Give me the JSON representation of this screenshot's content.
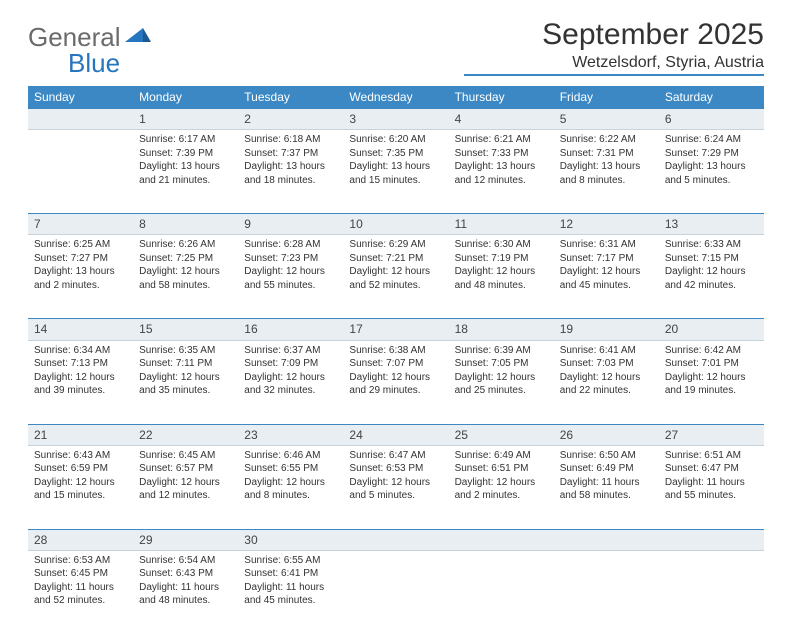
{
  "logo": {
    "part1": "General",
    "part2": "Blue"
  },
  "title": "September 2025",
  "location": "Wetzelsdorf, Styria, Austria",
  "colors": {
    "header_bg": "#3b88c4",
    "header_text": "#ffffff",
    "daynum_bg": "#e9eef2",
    "daynum_border_top": "#3b88c4",
    "body_text": "#333333",
    "logo_gray": "#6b6b6b",
    "logo_blue": "#2676bf"
  },
  "weekdays": [
    "Sunday",
    "Monday",
    "Tuesday",
    "Wednesday",
    "Thursday",
    "Friday",
    "Saturday"
  ],
  "weeks": [
    {
      "nums": [
        "",
        "1",
        "2",
        "3",
        "4",
        "5",
        "6"
      ],
      "cells": [
        null,
        {
          "sunrise": "Sunrise: 6:17 AM",
          "sunset": "Sunset: 7:39 PM",
          "d1": "Daylight: 13 hours",
          "d2": "and 21 minutes."
        },
        {
          "sunrise": "Sunrise: 6:18 AM",
          "sunset": "Sunset: 7:37 PM",
          "d1": "Daylight: 13 hours",
          "d2": "and 18 minutes."
        },
        {
          "sunrise": "Sunrise: 6:20 AM",
          "sunset": "Sunset: 7:35 PM",
          "d1": "Daylight: 13 hours",
          "d2": "and 15 minutes."
        },
        {
          "sunrise": "Sunrise: 6:21 AM",
          "sunset": "Sunset: 7:33 PM",
          "d1": "Daylight: 13 hours",
          "d2": "and 12 minutes."
        },
        {
          "sunrise": "Sunrise: 6:22 AM",
          "sunset": "Sunset: 7:31 PM",
          "d1": "Daylight: 13 hours",
          "d2": "and 8 minutes."
        },
        {
          "sunrise": "Sunrise: 6:24 AM",
          "sunset": "Sunset: 7:29 PM",
          "d1": "Daylight: 13 hours",
          "d2": "and 5 minutes."
        }
      ]
    },
    {
      "nums": [
        "7",
        "8",
        "9",
        "10",
        "11",
        "12",
        "13"
      ],
      "cells": [
        {
          "sunrise": "Sunrise: 6:25 AM",
          "sunset": "Sunset: 7:27 PM",
          "d1": "Daylight: 13 hours",
          "d2": "and 2 minutes."
        },
        {
          "sunrise": "Sunrise: 6:26 AM",
          "sunset": "Sunset: 7:25 PM",
          "d1": "Daylight: 12 hours",
          "d2": "and 58 minutes."
        },
        {
          "sunrise": "Sunrise: 6:28 AM",
          "sunset": "Sunset: 7:23 PM",
          "d1": "Daylight: 12 hours",
          "d2": "and 55 minutes."
        },
        {
          "sunrise": "Sunrise: 6:29 AM",
          "sunset": "Sunset: 7:21 PM",
          "d1": "Daylight: 12 hours",
          "d2": "and 52 minutes."
        },
        {
          "sunrise": "Sunrise: 6:30 AM",
          "sunset": "Sunset: 7:19 PM",
          "d1": "Daylight: 12 hours",
          "d2": "and 48 minutes."
        },
        {
          "sunrise": "Sunrise: 6:31 AM",
          "sunset": "Sunset: 7:17 PM",
          "d1": "Daylight: 12 hours",
          "d2": "and 45 minutes."
        },
        {
          "sunrise": "Sunrise: 6:33 AM",
          "sunset": "Sunset: 7:15 PM",
          "d1": "Daylight: 12 hours",
          "d2": "and 42 minutes."
        }
      ]
    },
    {
      "nums": [
        "14",
        "15",
        "16",
        "17",
        "18",
        "19",
        "20"
      ],
      "cells": [
        {
          "sunrise": "Sunrise: 6:34 AM",
          "sunset": "Sunset: 7:13 PM",
          "d1": "Daylight: 12 hours",
          "d2": "and 39 minutes."
        },
        {
          "sunrise": "Sunrise: 6:35 AM",
          "sunset": "Sunset: 7:11 PM",
          "d1": "Daylight: 12 hours",
          "d2": "and 35 minutes."
        },
        {
          "sunrise": "Sunrise: 6:37 AM",
          "sunset": "Sunset: 7:09 PM",
          "d1": "Daylight: 12 hours",
          "d2": "and 32 minutes."
        },
        {
          "sunrise": "Sunrise: 6:38 AM",
          "sunset": "Sunset: 7:07 PM",
          "d1": "Daylight: 12 hours",
          "d2": "and 29 minutes."
        },
        {
          "sunrise": "Sunrise: 6:39 AM",
          "sunset": "Sunset: 7:05 PM",
          "d1": "Daylight: 12 hours",
          "d2": "and 25 minutes."
        },
        {
          "sunrise": "Sunrise: 6:41 AM",
          "sunset": "Sunset: 7:03 PM",
          "d1": "Daylight: 12 hours",
          "d2": "and 22 minutes."
        },
        {
          "sunrise": "Sunrise: 6:42 AM",
          "sunset": "Sunset: 7:01 PM",
          "d1": "Daylight: 12 hours",
          "d2": "and 19 minutes."
        }
      ]
    },
    {
      "nums": [
        "21",
        "22",
        "23",
        "24",
        "25",
        "26",
        "27"
      ],
      "cells": [
        {
          "sunrise": "Sunrise: 6:43 AM",
          "sunset": "Sunset: 6:59 PM",
          "d1": "Daylight: 12 hours",
          "d2": "and 15 minutes."
        },
        {
          "sunrise": "Sunrise: 6:45 AM",
          "sunset": "Sunset: 6:57 PM",
          "d1": "Daylight: 12 hours",
          "d2": "and 12 minutes."
        },
        {
          "sunrise": "Sunrise: 6:46 AM",
          "sunset": "Sunset: 6:55 PM",
          "d1": "Daylight: 12 hours",
          "d2": "and 8 minutes."
        },
        {
          "sunrise": "Sunrise: 6:47 AM",
          "sunset": "Sunset: 6:53 PM",
          "d1": "Daylight: 12 hours",
          "d2": "and 5 minutes."
        },
        {
          "sunrise": "Sunrise: 6:49 AM",
          "sunset": "Sunset: 6:51 PM",
          "d1": "Daylight: 12 hours",
          "d2": "and 2 minutes."
        },
        {
          "sunrise": "Sunrise: 6:50 AM",
          "sunset": "Sunset: 6:49 PM",
          "d1": "Daylight: 11 hours",
          "d2": "and 58 minutes."
        },
        {
          "sunrise": "Sunrise: 6:51 AM",
          "sunset": "Sunset: 6:47 PM",
          "d1": "Daylight: 11 hours",
          "d2": "and 55 minutes."
        }
      ]
    },
    {
      "nums": [
        "28",
        "29",
        "30",
        "",
        "",
        "",
        ""
      ],
      "cells": [
        {
          "sunrise": "Sunrise: 6:53 AM",
          "sunset": "Sunset: 6:45 PM",
          "d1": "Daylight: 11 hours",
          "d2": "and 52 minutes."
        },
        {
          "sunrise": "Sunrise: 6:54 AM",
          "sunset": "Sunset: 6:43 PM",
          "d1": "Daylight: 11 hours",
          "d2": "and 48 minutes."
        },
        {
          "sunrise": "Sunrise: 6:55 AM",
          "sunset": "Sunset: 6:41 PM",
          "d1": "Daylight: 11 hours",
          "d2": "and 45 minutes."
        },
        null,
        null,
        null,
        null
      ]
    }
  ]
}
